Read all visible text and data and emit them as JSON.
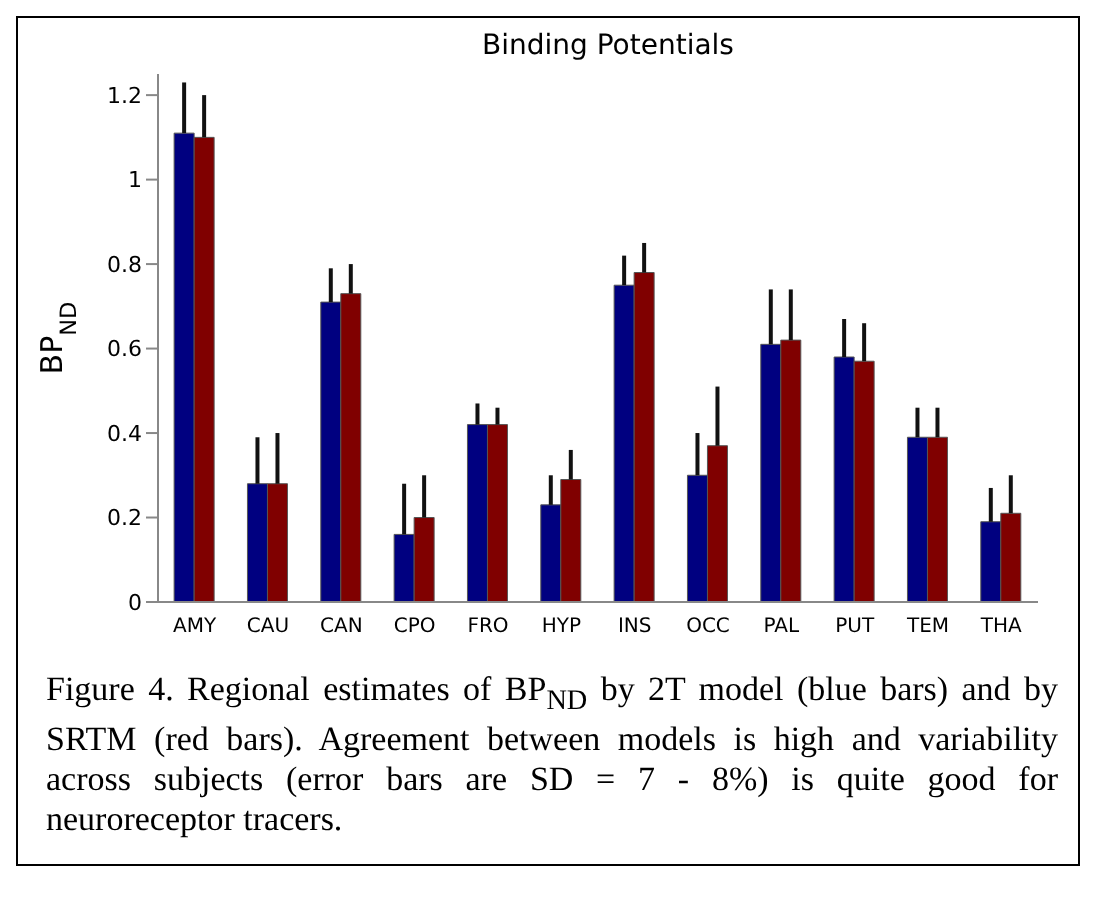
{
  "chart_data": {
    "type": "bar",
    "title": "Binding Potentials",
    "ylabel": "BP$_{ND}$",
    "categories": [
      "AMY",
      "CAU",
      "CAN",
      "CPO",
      "FRO",
      "HYP",
      "INS",
      "OCC",
      "PAL",
      "PUT",
      "TEM",
      "THA"
    ],
    "series": [
      {
        "color": "#000080",
        "values": [
          1.11,
          0.28,
          0.71,
          0.16,
          0.42,
          0.23,
          0.75,
          0.3,
          0.61,
          0.58,
          0.39,
          0.19
        ],
        "errors": [
          [
            1.11,
            1.23
          ],
          [
            0.28,
            0.39
          ],
          [
            0.71,
            0.79
          ],
          [
            0.16,
            0.28
          ],
          [
            0.42,
            0.47
          ],
          [
            0.23,
            0.3
          ],
          [
            0.75,
            0.82
          ],
          [
            0.3,
            0.4
          ],
          [
            0.61,
            0.74
          ],
          [
            0.58,
            0.67
          ],
          [
            0.39,
            0.46
          ],
          [
            0.19,
            0.27
          ]
        ]
      },
      {
        "color": "#800000",
        "values": [
          1.1,
          0.28,
          0.73,
          0.2,
          0.42,
          0.29,
          0.78,
          0.37,
          0.62,
          0.57,
          0.39,
          0.21
        ],
        "errors": [
          [
            1.1,
            1.2
          ],
          [
            0.28,
            0.4
          ],
          [
            0.73,
            0.8
          ],
          [
            0.2,
            0.3
          ],
          [
            0.42,
            0.46
          ],
          [
            0.29,
            0.36
          ],
          [
            0.78,
            0.85
          ],
          [
            0.37,
            0.51
          ],
          [
            0.62,
            0.74
          ],
          [
            0.57,
            0.66
          ],
          [
            0.39,
            0.46
          ],
          [
            0.21,
            0.3
          ]
        ]
      }
    ],
    "ylim": [
      0,
      1.25
    ],
    "yticks": [
      0,
      0.2,
      0.4,
      0.6,
      0.8,
      1,
      1.2
    ],
    "grid": false,
    "legend": false,
    "annotations": [
      "Figure 4. Regional estimates of BP$_{ND}$ by 2T model (blue bars) and by SRTM (red bars).  Agreement between models is high and variability across subjects (error bars are SD = 7 - 8%) is quite good for neuroreceptor tracers."
    ]
  }
}
